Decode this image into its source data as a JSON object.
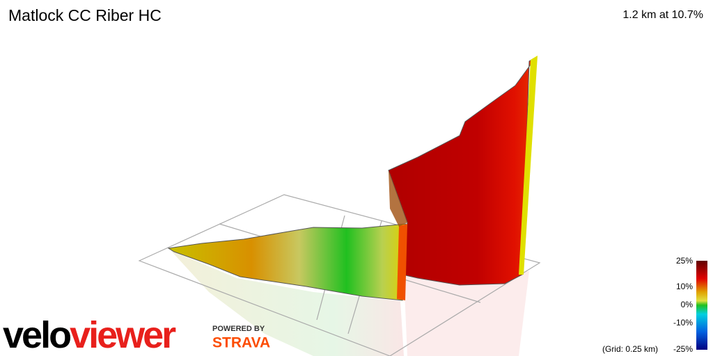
{
  "header": {
    "title": "Matlock CC Riber HC",
    "summary": "1.2 km at 10.7%"
  },
  "legend": {
    "labels": [
      "25%",
      "10%",
      "0%",
      "-10%"
    ],
    "bottom_label": "-25%",
    "grid_note": "(Grid: 0.25 km)"
  },
  "branding": {
    "logo_start": "velo",
    "logo_end": "viewer",
    "powered_by": "POWERED BY",
    "partner": "STRAVA"
  }
}
